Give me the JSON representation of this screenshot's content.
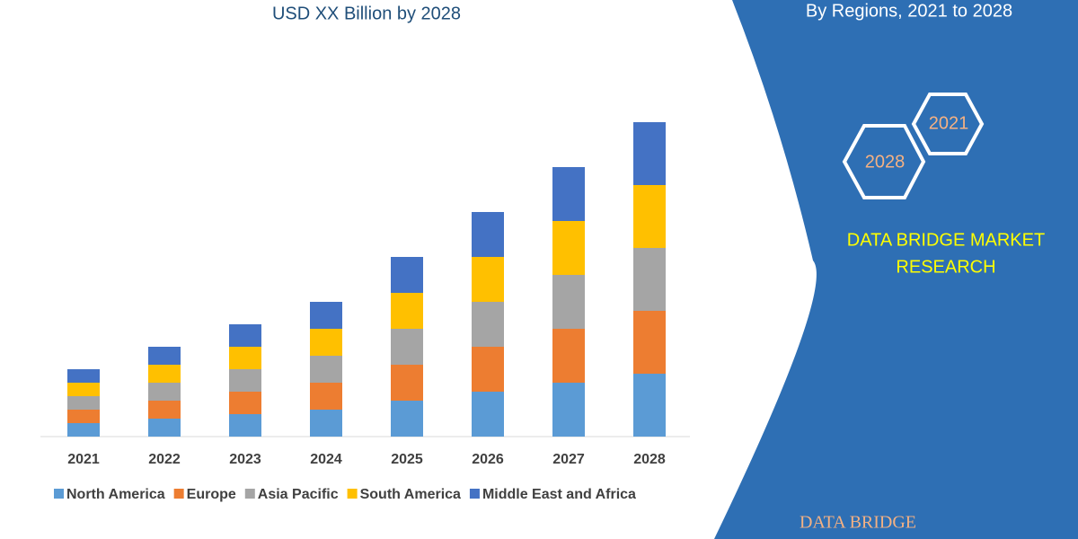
{
  "chart_data": {
    "type": "stacked_bar",
    "title": "USD XX Billion by 2028",
    "categories": [
      "2021",
      "2022",
      "2023",
      "2024",
      "2025",
      "2026",
      "2027",
      "2028"
    ],
    "series": [
      {
        "name": "North America",
        "color": "#5b9bd5",
        "values": [
          15,
          20,
          25,
          30,
          40,
          50,
          60,
          70
        ]
      },
      {
        "name": "Europe",
        "color": "#ed7d31",
        "values": [
          15,
          20,
          25,
          30,
          40,
          50,
          60,
          70
        ]
      },
      {
        "name": "Asia Pacific",
        "color": "#a5a5a5",
        "values": [
          15,
          20,
          25,
          30,
          40,
          50,
          60,
          70
        ]
      },
      {
        "name": "South America",
        "color": "#ffc000",
        "values": [
          15,
          20,
          25,
          30,
          40,
          50,
          60,
          70
        ]
      },
      {
        "name": "Middle East and Africa",
        "color": "#4472c4",
        "values": [
          15,
          20,
          25,
          30,
          40,
          50,
          60,
          70
        ]
      }
    ],
    "ylim": [
      0,
      360
    ]
  },
  "panel": {
    "subtitle": "By Regions, 2021 to 2028",
    "hexagons": [
      "2021",
      "2028"
    ],
    "brand_lines": [
      "DATA BRIDGE MARKET",
      "RESEARCH"
    ],
    "logo": "DATA BRIDGE"
  }
}
